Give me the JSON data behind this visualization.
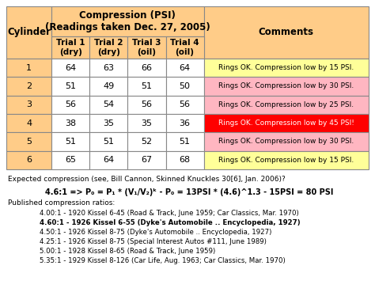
{
  "title": "Compression (PSI)",
  "subtitle": "(Readings taken Dec. 27, 2005)",
  "col_headers": [
    "Cylinder",
    "Trial 1\n(dry)",
    "Trial 2\n(dry)",
    "Trial 3\n(oil)",
    "Trial 4\n(oil)",
    "Comments"
  ],
  "rows": [
    {
      "cyl": "1",
      "vals": [
        64,
        63,
        66,
        64
      ],
      "comment": "Rings OK. Compression low by 15 PSI.",
      "comment_color": "#FFFF99",
      "row_color": "#FFCC88"
    },
    {
      "cyl": "2",
      "vals": [
        51,
        49,
        51,
        50
      ],
      "comment": "Rings OK. Compression low by 30 PSI.",
      "comment_color": "#FFB6C1",
      "row_color": "#FFCC88"
    },
    {
      "cyl": "3",
      "vals": [
        56,
        54,
        56,
        56
      ],
      "comment": "Rings OK. Compression low by 25 PSI.",
      "comment_color": "#FFB6C1",
      "row_color": "#FFCC88"
    },
    {
      "cyl": "4",
      "vals": [
        38,
        35,
        35,
        36
      ],
      "comment": "Rings OK. Compression low by 45 PSI!",
      "comment_color": "#FF0000",
      "row_color": "#FFCC88"
    },
    {
      "cyl": "5",
      "vals": [
        51,
        51,
        52,
        51
      ],
      "comment": "Rings OK. Compression low by 30 PSI.",
      "comment_color": "#FFB6C1",
      "row_color": "#FFCC88"
    },
    {
      "cyl": "6",
      "vals": [
        65,
        64,
        67,
        68
      ],
      "comment": "Rings OK. Compression low by 15 PSI.",
      "comment_color": "#FFFF99",
      "row_color": "#FFCC88"
    }
  ],
  "header_bg": "#FFCC88",
  "table_border_color": "#888888",
  "formula_line1": "Expected compression (see, Bill Cannon, Skinned Knuckles 30[6], Jan. 2006)?",
  "formula_line2": "4.6:1 => P₀ = P₁ * (V₁/V₂)ᵏ - P₀ = 13PSI * (4.6)^1.3 - 15PSI = 80 PSI",
  "published_header": "Published compression ratios:",
  "published_lines": [
    {
      "text": "4.00:1 - 1920 Kissel 6-45 (Road & Track, June 1959; Car Classics, Mar. 1970)",
      "bold": false
    },
    {
      "text": "4.60:1 - 1926 Kissel 6-55 (Dyke's Automobile .. Encyclopedia, 1927)",
      "bold": true
    },
    {
      "text": "4.50:1 - 1926 Kissel 8-75 (Dyke's Automobile .. Encyclopedia, 1927)",
      "bold": false
    },
    {
      "text": "4.25:1 - 1926 Kissel 8-75 (Special Interest Autos #111, June 1989)",
      "bold": false
    },
    {
      "text": "5.00:1 - 1928 Kissel 8-65 (Road & Track, June 1959)",
      "bold": false
    },
    {
      "text": "5.35:1 - 1929 Kissel 8-126 (Car Life, Aug. 1963; Car Classics, Mar. 1970)",
      "bold": false
    }
  ],
  "bg_color": "#FFFFFF",
  "fig_width": 4.74,
  "fig_height": 3.69,
  "dpi": 100
}
